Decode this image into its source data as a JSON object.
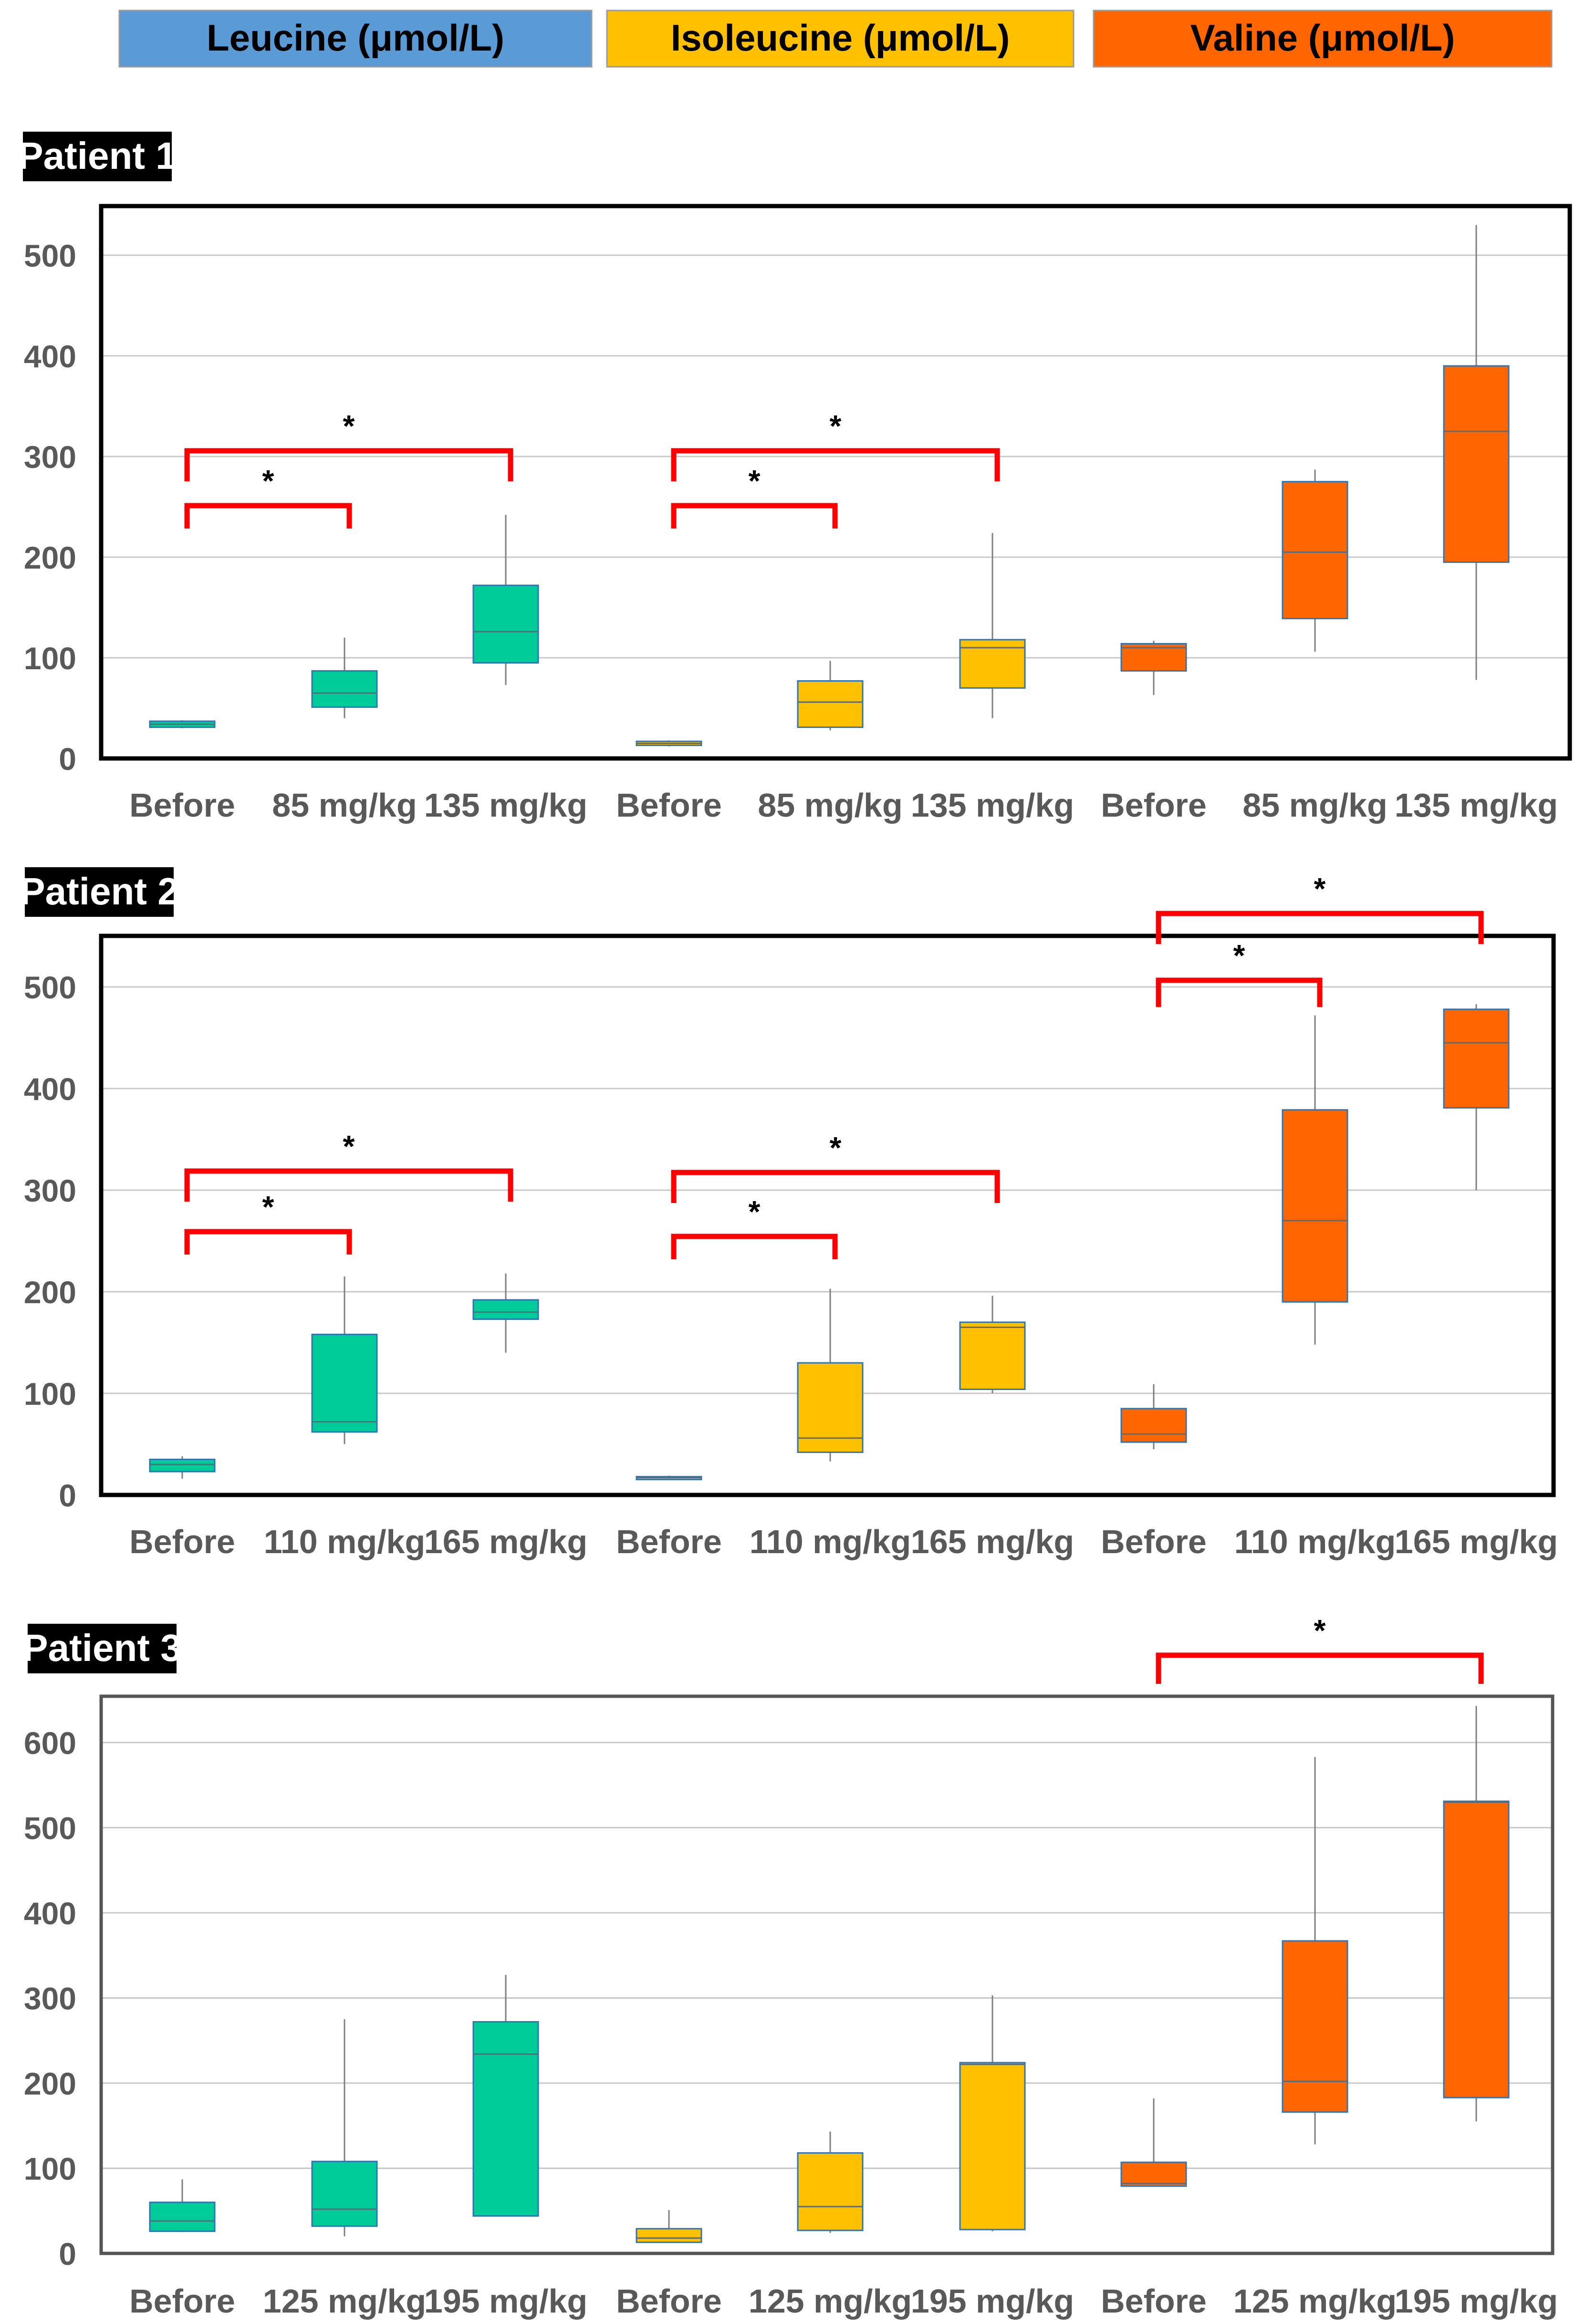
{
  "legend": [
    {
      "label": "Leucine (μmol/L)",
      "color": "#5b9bd5",
      "text_color": "#000000"
    },
    {
      "label": "Isoleucine (μmol/L)",
      "color": "#ffc000",
      "text_color": "#000000"
    },
    {
      "label": "Valine (μmol/L)",
      "color": "#ff6600",
      "text_color": "#000000"
    }
  ],
  "chart_data": [
    {
      "type": "box",
      "title": "Patient 1",
      "ylim": [
        0,
        550
      ],
      "yticks": [
        0,
        100,
        200,
        300,
        400,
        500
      ],
      "categories": [
        "Before",
        "85  mg/kg",
        "135  mg/kg",
        "Before",
        "85  mg/kg",
        "135  mg/kg",
        "Before",
        "85  mg/kg",
        "135  mg/kg"
      ],
      "series": [
        {
          "name": "Leucine",
          "color": "#00cc99",
          "stroke": "#2e75b6",
          "boxes": [
            {
              "min": 30,
              "q1": 31,
              "median": 34,
              "q3": 37,
              "max": 38
            },
            {
              "min": 40,
              "q1": 51,
              "median": 65,
              "q3": 87,
              "max": 120
            },
            {
              "min": 73,
              "q1": 95,
              "median": 126,
              "q3": 172,
              "max": 242
            }
          ]
        },
        {
          "name": "Isoleucine",
          "color": "#ffc000",
          "stroke": "#2e75b6",
          "boxes": [
            {
              "min": 12,
              "q1": 13,
              "median": 15,
              "q3": 17,
              "max": 18
            },
            {
              "min": 28,
              "q1": 31,
              "median": 56,
              "q3": 77,
              "max": 97
            },
            {
              "min": 40,
              "q1": 70,
              "median": 110,
              "q3": 118,
              "max": 224
            }
          ]
        },
        {
          "name": "Valine",
          "color": "#ff6600",
          "stroke": "#2e75b6",
          "boxes": [
            {
              "min": 63,
              "q1": 87,
              "median": 110,
              "q3": 114,
              "max": 117
            },
            {
              "min": 106,
              "q1": 139,
              "median": 205,
              "q3": 275,
              "max": 287
            },
            {
              "min": 78,
              "q1": 195,
              "median": 325,
              "q3": 390,
              "max": 530
            }
          ]
        }
      ],
      "significance": [
        {
          "from": 0,
          "to": 1,
          "label": "*"
        },
        {
          "from": 0,
          "to": 2,
          "label": "*"
        },
        {
          "from": 3,
          "to": 4,
          "label": "*"
        },
        {
          "from": 3,
          "to": 5,
          "label": "*"
        }
      ]
    },
    {
      "type": "box",
      "title": "Patient 2",
      "ylim": [
        0,
        550
      ],
      "yticks": [
        0,
        100,
        200,
        300,
        400,
        500
      ],
      "categories": [
        "Before",
        "110 mg/kg",
        "165 mg/kg",
        "Before",
        "110 mg/kg",
        "165 mg/kg",
        "Before",
        "110 mg/kg",
        "165 mg/kg"
      ],
      "series": [
        {
          "name": "Leucine",
          "color": "#00cc99",
          "stroke": "#2e75b6",
          "boxes": [
            {
              "min": 16,
              "q1": 23,
              "median": 30,
              "q3": 35,
              "max": 38
            },
            {
              "min": 50,
              "q1": 62,
              "median": 72,
              "q3": 158,
              "max": 215
            },
            {
              "min": 140,
              "q1": 173,
              "median": 180,
              "q3": 192,
              "max": 218
            }
          ]
        },
        {
          "name": "Isoleucine",
          "color": "#ffc000",
          "stroke": "#2e75b6",
          "boxes": [
            {
              "min": 16,
              "q1": 16,
              "median": 17,
              "q3": 18,
              "max": 19
            },
            {
              "min": 33,
              "q1": 42,
              "median": 56,
              "q3": 130,
              "max": 203
            },
            {
              "min": 100,
              "q1": 104,
              "median": 165,
              "q3": 170,
              "max": 196
            }
          ]
        },
        {
          "name": "Valine",
          "color": "#ff6600",
          "stroke": "#2e75b6",
          "boxes": [
            {
              "min": 45,
              "q1": 52,
              "median": 60,
              "q3": 85,
              "max": 109
            },
            {
              "min": 148,
              "q1": 190,
              "median": 270,
              "q3": 379,
              "max": 472
            },
            {
              "min": 300,
              "q1": 381,
              "median": 445,
              "q3": 478,
              "max": 483
            }
          ]
        }
      ],
      "significance": [
        {
          "from": 0,
          "to": 1,
          "label": "*"
        },
        {
          "from": 0,
          "to": 2,
          "label": "*"
        },
        {
          "from": 3,
          "to": 4,
          "label": "*"
        },
        {
          "from": 3,
          "to": 5,
          "label": "*"
        },
        {
          "from": 6,
          "to": 7,
          "label": "*"
        },
        {
          "from": 6,
          "to": 8,
          "label": "*"
        }
      ]
    },
    {
      "type": "box",
      "title": "Patient 3",
      "ylim": [
        0,
        650
      ],
      "yticks": [
        0,
        100,
        200,
        300,
        400,
        500,
        600
      ],
      "categories": [
        "Before",
        "125 mg/kg",
        "195 mg/kg",
        "Before",
        "125 mg/kg",
        "195 mg/kg",
        "Before",
        "125 mg/kg",
        "195 mg/kg"
      ],
      "series": [
        {
          "name": "Leucine",
          "color": "#00cc99",
          "stroke": "#2e75b6",
          "boxes": [
            {
              "min": 25,
              "q1": 26,
              "median": 38,
              "q3": 60,
              "max": 87
            },
            {
              "min": 20,
              "q1": 32,
              "median": 52,
              "q3": 108,
              "max": 275
            },
            {
              "min": 44,
              "q1": 44,
              "median": 234,
              "q3": 272,
              "max": 327
            }
          ]
        },
        {
          "name": "Isoleucine",
          "color": "#ffc000",
          "stroke": "#2e75b6",
          "boxes": [
            {
              "min": 13,
              "q1": 13,
              "median": 18,
              "q3": 29,
              "max": 51
            },
            {
              "min": 24,
              "q1": 27,
              "median": 55,
              "q3": 118,
              "max": 143
            },
            {
              "min": 26,
              "q1": 28,
              "median": 222,
              "q3": 224,
              "max": 303
            }
          ]
        },
        {
          "name": "Valine",
          "color": "#ff6600",
          "stroke": "#2e75b6",
          "boxes": [
            {
              "min": 79,
              "q1": 79,
              "median": 82,
              "q3": 107,
              "max": 182
            },
            {
              "min": 128,
              "q1": 166,
              "median": 202,
              "q3": 367,
              "max": 583
            },
            {
              "min": 155,
              "q1": 183,
              "median": 530,
              "q3": 531,
              "max": 643
            }
          ]
        }
      ],
      "significance": [
        {
          "from": 6,
          "to": 8,
          "label": "*"
        }
      ]
    }
  ]
}
